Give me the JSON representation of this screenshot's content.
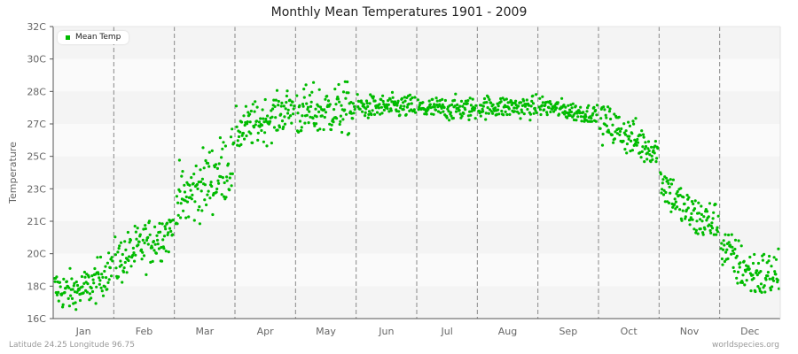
{
  "chart_data": {
    "type": "scatter",
    "title": "Monthly Mean Temperatures 1901 - 2009",
    "xlabel": "",
    "ylabel": "Temperature",
    "categories": [
      "Jan",
      "Feb",
      "Mar",
      "Apr",
      "May",
      "Jun",
      "Jul",
      "Aug",
      "Sep",
      "Oct",
      "Nov",
      "Dec"
    ],
    "y_ticks": [
      "16C",
      "18C",
      "20C",
      "21C",
      "23C",
      "25C",
      "27C",
      "28C",
      "30C",
      "32C"
    ],
    "ylim": [
      16,
      32
    ],
    "grid": "alternating horizontal bands, dashed vertical month separators",
    "legend": {
      "position": "top-left",
      "entries": [
        "Mean Temp"
      ]
    },
    "series": [
      {
        "name": "Mean Temp",
        "color": "#00bb00",
        "points_per_month": 109,
        "monthly_summary": [
          {
            "month": "Jan",
            "min": 16.5,
            "max": 19.6,
            "mean": 17.9,
            "trend": "dips mid-month then rises"
          },
          {
            "month": "Feb",
            "min": 17.7,
            "max": 21.4,
            "mean": 20.0,
            "trend": "rising"
          },
          {
            "month": "Mar",
            "min": 21.2,
            "max": 26.5,
            "mean": 23.4,
            "trend": "rising"
          },
          {
            "month": "Apr",
            "min": 25.2,
            "max": 28.5,
            "mean": 26.9,
            "trend": "rising"
          },
          {
            "month": "May",
            "min": 26.0,
            "max": 29.9,
            "mean": 27.4,
            "trend": "flat"
          },
          {
            "month": "Jun",
            "min": 26.8,
            "max": 28.6,
            "mean": 27.6,
            "trend": "flat"
          },
          {
            "month": "Jul",
            "min": 26.6,
            "max": 28.4,
            "mean": 27.5,
            "trend": "flat"
          },
          {
            "month": "Aug",
            "min": 26.7,
            "max": 28.4,
            "mean": 27.6,
            "trend": "flat"
          },
          {
            "month": "Sep",
            "min": 26.8,
            "max": 28.3,
            "mean": 27.4,
            "trend": "slightly falling"
          },
          {
            "month": "Oct",
            "min": 24.6,
            "max": 27.6,
            "mean": 26.0,
            "trend": "flat"
          },
          {
            "month": "Nov",
            "min": 20.6,
            "max": 24.0,
            "mean": 22.1,
            "trend": "dips mid-month"
          },
          {
            "month": "Dec",
            "min": 16.8,
            "max": 20.6,
            "mean": 18.9,
            "trend": "dips mid-month then rises"
          }
        ]
      }
    ]
  },
  "footer": {
    "location": "Latitude 24.25 Longitude 96.75",
    "source": "worldspecies.org"
  },
  "colors": {
    "point": "#00bb00",
    "band_dark": "#f4f4f4",
    "band_light": "#fafafa",
    "separator": "#888888",
    "axis": "#555555"
  }
}
